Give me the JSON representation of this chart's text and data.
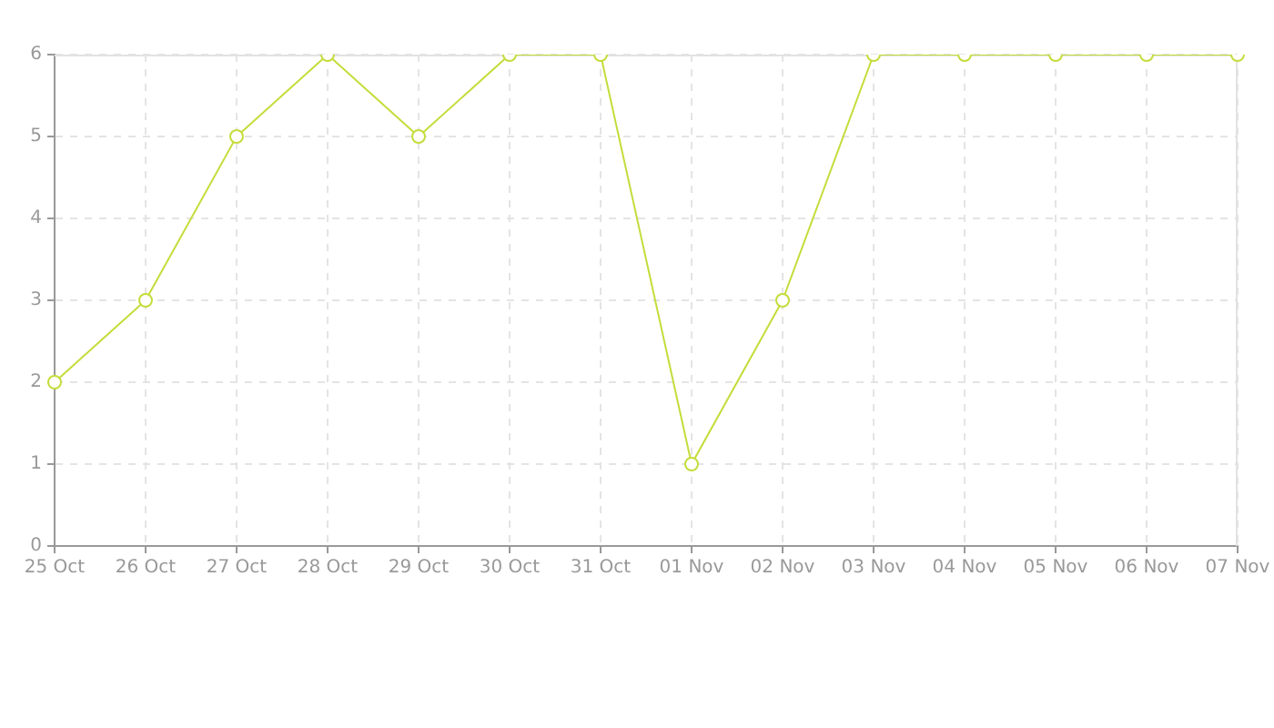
{
  "chart_data": {
    "type": "line",
    "categories": [
      "25 Oct",
      "26 Oct",
      "27 Oct",
      "28 Oct",
      "29 Oct",
      "30 Oct",
      "31 Oct",
      "01 Nov",
      "02 Nov",
      "03 Nov",
      "04 Nov",
      "05 Nov",
      "06 Nov",
      "07 Nov"
    ],
    "series": [
      {
        "color": "#c5dc3a",
        "values": [
          2,
          3,
          5,
          6,
          5,
          6,
          6,
          1,
          3,
          6,
          6,
          6,
          6,
          6
        ]
      }
    ],
    "ylim": [
      0,
      6
    ],
    "yticks": [
      0,
      1,
      2,
      3,
      4,
      5,
      6
    ],
    "grid": true,
    "marker": "circle",
    "line_style": "solid"
  }
}
